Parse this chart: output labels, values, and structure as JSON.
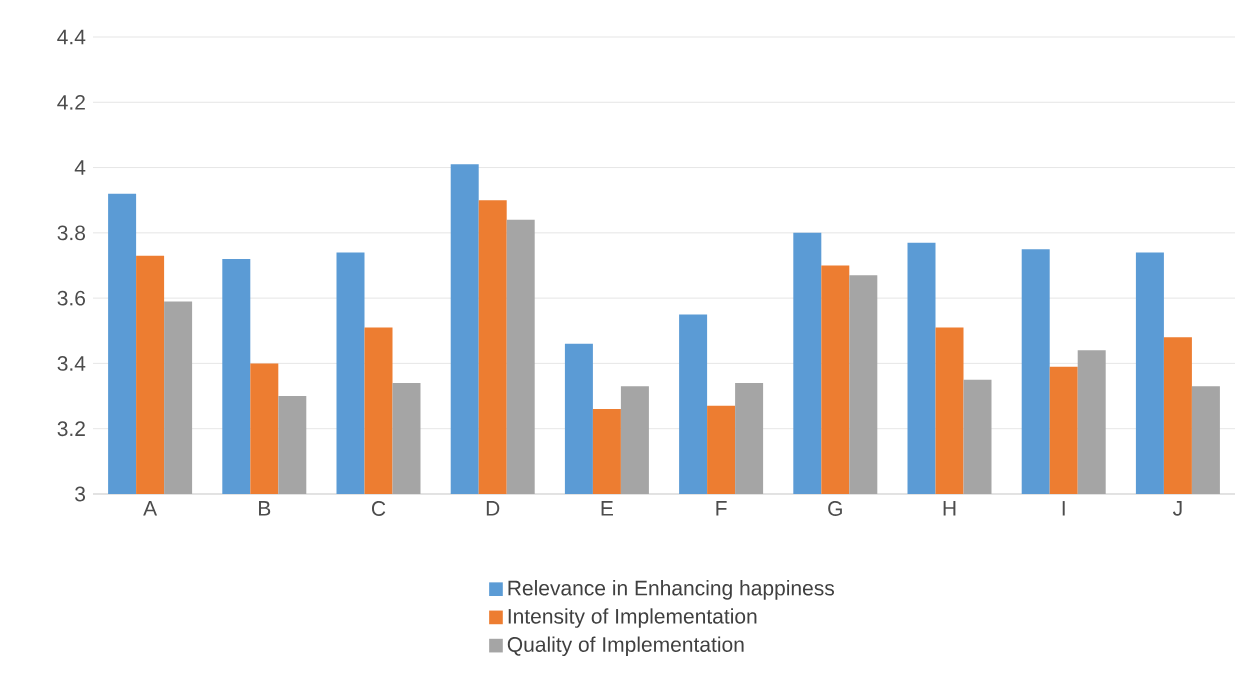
{
  "chart_data": {
    "type": "bar",
    "categories": [
      "A",
      "B",
      "C",
      "D",
      "E",
      "F",
      "G",
      "H",
      "I",
      "J"
    ],
    "series": [
      {
        "name": "Relevance in Enhancing happiness",
        "color": "#5b9bd5",
        "values": [
          3.92,
          3.72,
          3.74,
          4.01,
          3.46,
          3.55,
          3.8,
          3.77,
          3.75,
          3.74
        ]
      },
      {
        "name": "Intensity of Implementation",
        "color": "#ed7d31",
        "values": [
          3.73,
          3.4,
          3.51,
          3.9,
          3.26,
          3.27,
          3.7,
          3.51,
          3.39,
          3.48
        ]
      },
      {
        "name": "Quality of Implementation",
        "color": "#a5a5a5",
        "values": [
          3.59,
          3.3,
          3.34,
          3.84,
          3.33,
          3.34,
          3.67,
          3.35,
          3.44,
          3.33
        ]
      }
    ],
    "ylim": [
      3,
      4.4
    ],
    "yticks": [
      3,
      3.2,
      3.4,
      3.6,
      3.8,
      4,
      4.2,
      4.4
    ],
    "grid": "y",
    "legend": "bottom"
  }
}
